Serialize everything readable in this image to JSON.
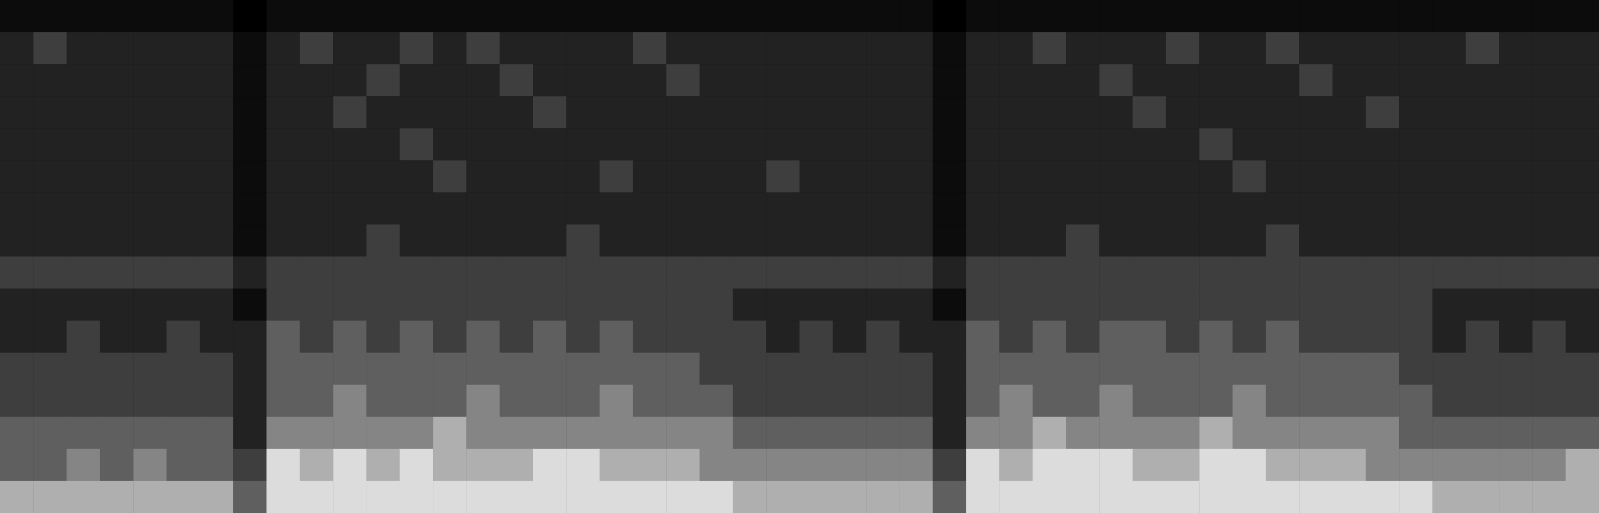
{
  "chart_data": {
    "type": "heatmap",
    "tick_labels": false,
    "cells": [
      [
        1,
        1,
        1,
        1,
        1,
        1,
        1,
        0,
        1,
        1,
        1,
        1,
        1,
        1,
        1,
        1,
        1,
        1,
        1,
        1,
        1,
        1,
        1,
        1,
        1,
        1,
        1,
        1,
        0,
        1,
        1,
        1,
        1,
        1,
        1,
        1,
        1,
        1,
        1,
        1,
        1,
        1,
        1,
        1,
        1,
        1,
        1,
        1
      ],
      [
        2,
        3,
        2,
        2,
        2,
        2,
        2,
        1,
        2,
        3,
        2,
        2,
        3,
        2,
        3,
        2,
        2,
        2,
        2,
        3,
        2,
        2,
        2,
        2,
        2,
        2,
        2,
        2,
        1,
        2,
        2,
        3,
        2,
        2,
        2,
        3,
        2,
        2,
        3,
        2,
        2,
        2,
        2,
        2,
        3,
        2,
        2,
        2
      ],
      [
        2,
        2,
        2,
        2,
        2,
        2,
        2,
        1,
        2,
        2,
        2,
        3,
        2,
        2,
        2,
        3,
        2,
        2,
        2,
        2,
        3,
        2,
        2,
        2,
        2,
        2,
        2,
        2,
        1,
        2,
        2,
        2,
        2,
        3,
        2,
        2,
        2,
        2,
        2,
        3,
        2,
        2,
        2,
        2,
        2,
        2,
        2,
        2
      ],
      [
        2,
        2,
        2,
        2,
        2,
        2,
        2,
        1,
        2,
        2,
        3,
        2,
        2,
        2,
        2,
        2,
        3,
        2,
        2,
        2,
        2,
        2,
        2,
        2,
        2,
        2,
        2,
        2,
        1,
        2,
        2,
        2,
        2,
        2,
        3,
        2,
        2,
        2,
        2,
        2,
        2,
        3,
        2,
        2,
        2,
        2,
        2,
        2
      ],
      [
        2,
        2,
        2,
        2,
        2,
        2,
        2,
        1,
        2,
        2,
        2,
        2,
        3,
        2,
        2,
        2,
        2,
        2,
        2,
        2,
        2,
        2,
        2,
        2,
        2,
        2,
        2,
        2,
        1,
        2,
        2,
        2,
        2,
        2,
        2,
        2,
        3,
        2,
        2,
        2,
        2,
        2,
        2,
        2,
        2,
        2,
        2,
        2
      ],
      [
        2,
        2,
        2,
        2,
        2,
        2,
        2,
        1,
        2,
        2,
        2,
        2,
        2,
        3,
        2,
        2,
        2,
        2,
        3,
        2,
        2,
        2,
        2,
        3,
        2,
        2,
        2,
        2,
        1,
        2,
        2,
        2,
        2,
        2,
        2,
        2,
        2,
        3,
        2,
        2,
        2,
        2,
        2,
        2,
        2,
        2,
        2,
        2
      ],
      [
        2,
        2,
        2,
        2,
        2,
        2,
        2,
        1,
        2,
        2,
        2,
        2,
        2,
        2,
        2,
        2,
        2,
        2,
        2,
        2,
        2,
        2,
        2,
        2,
        2,
        2,
        2,
        2,
        1,
        2,
        2,
        2,
        2,
        2,
        2,
        2,
        2,
        2,
        2,
        2,
        2,
        2,
        2,
        2,
        2,
        2,
        2,
        2
      ],
      [
        2,
        2,
        2,
        2,
        2,
        2,
        2,
        1,
        2,
        2,
        2,
        3,
        2,
        2,
        2,
        2,
        2,
        3,
        2,
        2,
        2,
        2,
        2,
        2,
        2,
        2,
        2,
        2,
        1,
        2,
        2,
        2,
        3,
        2,
        2,
        2,
        2,
        2,
        3,
        2,
        2,
        2,
        2,
        2,
        2,
        2,
        2,
        2
      ],
      [
        3,
        3,
        3,
        3,
        3,
        3,
        3,
        2,
        3,
        3,
        3,
        3,
        3,
        3,
        3,
        3,
        3,
        3,
        3,
        3,
        3,
        3,
        3,
        3,
        3,
        3,
        3,
        3,
        2,
        3,
        3,
        3,
        3,
        3,
        3,
        3,
        3,
        3,
        3,
        3,
        3,
        3,
        3,
        3,
        3,
        3,
        3,
        3
      ],
      [
        2,
        2,
        2,
        2,
        2,
        2,
        2,
        1,
        3,
        3,
        3,
        3,
        3,
        3,
        3,
        3,
        3,
        3,
        3,
        3,
        3,
        3,
        2,
        2,
        2,
        2,
        2,
        2,
        1,
        3,
        3,
        3,
        3,
        3,
        3,
        3,
        3,
        3,
        3,
        3,
        3,
        3,
        3,
        2,
        2,
        2,
        2,
        2
      ],
      [
        2,
        2,
        3,
        2,
        2,
        3,
        2,
        2,
        4,
        3,
        4,
        3,
        4,
        3,
        4,
        3,
        4,
        3,
        4,
        3,
        3,
        3,
        3,
        2,
        3,
        2,
        3,
        2,
        2,
        4,
        3,
        4,
        3,
        4,
        4,
        3,
        4,
        3,
        4,
        3,
        3,
        3,
        3,
        2,
        3,
        2,
        3,
        2
      ],
      [
        3,
        3,
        3,
        3,
        3,
        3,
        3,
        2,
        4,
        4,
        4,
        4,
        4,
        4,
        4,
        4,
        4,
        4,
        4,
        4,
        4,
        3,
        3,
        3,
        3,
        3,
        3,
        3,
        2,
        4,
        4,
        4,
        4,
        4,
        4,
        4,
        4,
        4,
        4,
        4,
        4,
        4,
        3,
        3,
        3,
        3,
        3,
        3
      ],
      [
        3,
        3,
        3,
        3,
        3,
        3,
        3,
        2,
        4,
        4,
        5,
        4,
        4,
        4,
        5,
        4,
        4,
        4,
        5,
        4,
        4,
        4,
        3,
        3,
        3,
        3,
        3,
        3,
        2,
        4,
        5,
        4,
        4,
        5,
        4,
        4,
        4,
        5,
        4,
        4,
        4,
        4,
        4,
        3,
        3,
        3,
        3,
        3
      ],
      [
        4,
        4,
        4,
        4,
        4,
        4,
        4,
        2,
        5,
        5,
        5,
        5,
        5,
        6,
        5,
        5,
        5,
        5,
        5,
        5,
        5,
        5,
        4,
        4,
        4,
        4,
        4,
        4,
        2,
        5,
        5,
        6,
        5,
        5,
        5,
        5,
        6,
        5,
        5,
        5,
        5,
        5,
        4,
        4,
        4,
        4,
        4,
        4
      ],
      [
        4,
        4,
        5,
        4,
        5,
        4,
        4,
        3,
        7,
        6,
        7,
        6,
        7,
        6,
        6,
        6,
        7,
        7,
        6,
        6,
        6,
        5,
        5,
        5,
        5,
        5,
        5,
        5,
        3,
        7,
        6,
        7,
        7,
        7,
        6,
        6,
        7,
        7,
        6,
        6,
        6,
        5,
        5,
        5,
        5,
        5,
        5,
        6
      ],
      [
        6,
        6,
        6,
        6,
        6,
        6,
        6,
        4,
        7,
        7,
        7,
        7,
        7,
        7,
        7,
        7,
        7,
        7,
        7,
        7,
        7,
        7,
        6,
        6,
        6,
        6,
        6,
        6,
        4,
        7,
        7,
        7,
        7,
        7,
        7,
        7,
        7,
        7,
        7,
        7,
        7,
        7,
        7,
        6,
        6,
        6,
        6,
        6
      ]
    ]
  }
}
